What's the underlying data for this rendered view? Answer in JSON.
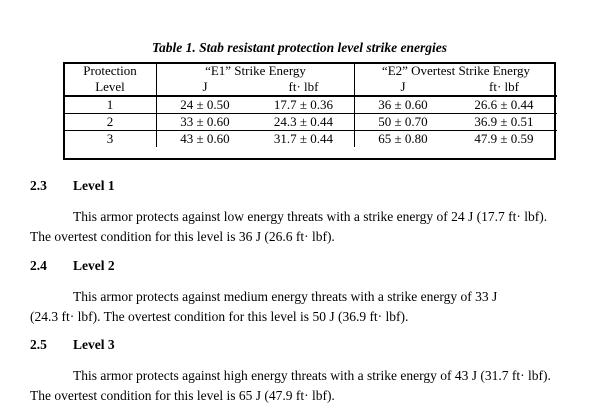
{
  "caption": "Table 1.  Stab resistant protection level strike energies",
  "table": {
    "header_level_line1": "Protection",
    "header_level_line2": "Level",
    "header_e1": "“E1” Strike Energy",
    "header_e2": "“E2” Overtest Strike Energy",
    "unit_j": "J",
    "unit_ftlbf": "ft· lbf",
    "rows": [
      {
        "level": "1",
        "e1_j": "24 ± 0.50",
        "e1_ft": "17.7 ± 0.36",
        "e2_j": "36 ± 0.60",
        "e2_ft": "26.6 ± 0.44"
      },
      {
        "level": "2",
        "e1_j": "33 ± 0.60",
        "e1_ft": "24.3 ± 0.44",
        "e2_j": "50 ± 0.70",
        "e2_ft": "36.9 ± 0.51"
      },
      {
        "level": "3",
        "e1_j": "43 ± 0.60",
        "e1_ft": "31.7 ± 0.44",
        "e2_j": "65 ± 0.80",
        "e2_ft": "47.9 ± 0.59"
      }
    ]
  },
  "sections": [
    {
      "number": "2.3",
      "title": "Level 1",
      "line1": "This armor protects against low energy threats with a strike energy of 24 J (17.7 ft·  lbf).",
      "line2": "The overtest condition for this level is 36 J (26.6 ft·  lbf)."
    },
    {
      "number": "2.4",
      "title": "Level 2",
      "line1": "This armor protects against medium energy threats with a strike energy of 33 J",
      "line2": "(24.3 ft·  lbf).  The overtest condition for this level is 50 J (36.9 ft·  lbf)."
    },
    {
      "number": "2.5",
      "title": "Level 3",
      "line1": "This armor protects against high energy threats with a strike energy of 43 J (31.7 ft·  lbf).",
      "line2": "The overtest condition for this level is 65 J (47.9 ft·  lbf)."
    }
  ]
}
